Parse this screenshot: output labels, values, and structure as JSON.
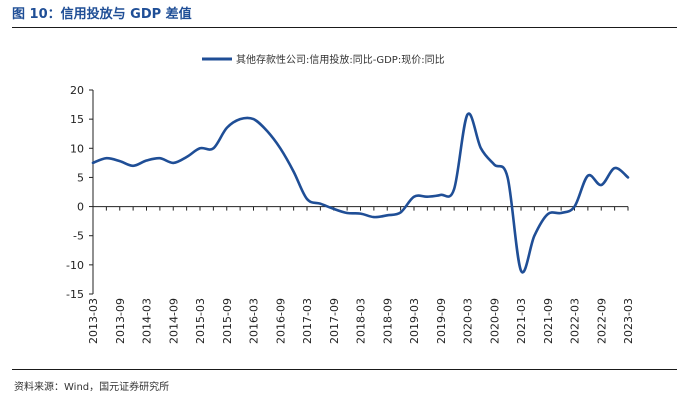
{
  "figure": {
    "title": "图 10：信用投放与 GDP 差值",
    "source": "资料来源：Wind，国元证券研究所"
  },
  "colors": {
    "series": "#1f4e96",
    "axis": "#222222",
    "title": "#1f4e96"
  },
  "chart_data": {
    "type": "line",
    "title": "",
    "xlabel": "",
    "ylabel": "",
    "ylim": [
      -15,
      20
    ],
    "yticks": [
      20,
      15,
      10,
      5,
      0,
      -5,
      -10,
      -15
    ],
    "grid": false,
    "legend_position": "top-center",
    "x_tick_labels": [
      "2013-03",
      "2013-09",
      "2014-03",
      "2014-09",
      "2015-03",
      "2015-09",
      "2016-03",
      "2016-09",
      "2017-03",
      "2017-09",
      "2018-03",
      "2018-09",
      "2019-03",
      "2019-09",
      "2020-03",
      "2020-09",
      "2021-03",
      "2021-09",
      "2022-03",
      "2022-09",
      "2023-03"
    ],
    "series": [
      {
        "name": "其他存款性公司:信用投放:同比-GDP:现价:同比",
        "x": [
          "2013-03",
          "2013-06",
          "2013-09",
          "2013-12",
          "2014-03",
          "2014-06",
          "2014-09",
          "2014-12",
          "2015-03",
          "2015-06",
          "2015-09",
          "2015-12",
          "2016-03",
          "2016-06",
          "2016-09",
          "2016-12",
          "2017-03",
          "2017-06",
          "2017-09",
          "2017-12",
          "2018-03",
          "2018-06",
          "2018-09",
          "2018-12",
          "2019-03",
          "2019-06",
          "2019-09",
          "2019-12",
          "2020-03",
          "2020-06",
          "2020-09",
          "2020-12",
          "2021-03",
          "2021-06",
          "2021-09",
          "2021-12",
          "2022-03",
          "2022-06",
          "2022-09",
          "2022-12",
          "2023-03"
        ],
        "values": [
          7.5,
          8.3,
          7.8,
          7.0,
          7.9,
          8.3,
          7.5,
          8.5,
          10.0,
          10.0,
          13.5,
          15.0,
          15.0,
          13.0,
          10.0,
          6.0,
          1.3,
          0.5,
          -0.4,
          -1.1,
          -1.2,
          -1.8,
          -1.5,
          -1.0,
          1.7,
          1.7,
          2.0,
          3.0,
          15.8,
          10.0,
          7.2,
          5.0,
          -11.0,
          -5.0,
          -1.3,
          -1.1,
          0.0,
          5.3,
          3.7,
          6.6,
          5.0
        ]
      }
    ]
  }
}
